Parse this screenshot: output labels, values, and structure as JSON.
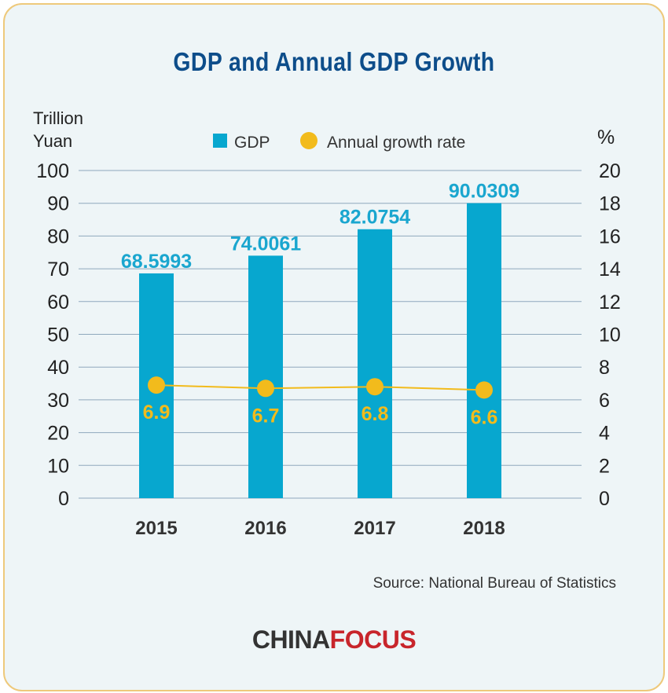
{
  "title": "GDP and Annual GDP Growth",
  "source": "Source: National Bureau of Statistics",
  "logo": {
    "part1": "CHINA",
    "part2": "FOCUS"
  },
  "colors": {
    "bar": "#07a7cf",
    "line": "#f2bb1c",
    "title": "#0d4d8a",
    "grid": "#8fa8bd"
  },
  "chart_data": {
    "type": "bar",
    "title": "GDP and Annual GDP Growth",
    "categories": [
      "2015",
      "2016",
      "2017",
      "2018"
    ],
    "y_left_label_line1": "Trillion",
    "y_left_label_line2": "Yuan",
    "y_right_label": "%",
    "ylim_left": [
      0,
      100
    ],
    "ylim_right": [
      0,
      20
    ],
    "yticks_left": [
      "0",
      "10",
      "20",
      "30",
      "40",
      "50",
      "60",
      "70",
      "80",
      "90",
      "100"
    ],
    "yticks_right": [
      "0",
      "2",
      "4",
      "6",
      "8",
      "10",
      "12",
      "14",
      "16",
      "18",
      "20"
    ],
    "grid": true,
    "legend_position": "top",
    "series": [
      {
        "name": "GDP",
        "type": "bar",
        "axis": "left",
        "values": [
          68.5993,
          74.0061,
          82.0754,
          90.0309
        ],
        "labels": [
          "68.5993",
          "74.0061",
          "82.0754",
          "90.0309"
        ]
      },
      {
        "name": "Annual growth rate",
        "type": "line",
        "axis": "right",
        "values": [
          6.9,
          6.7,
          6.8,
          6.6
        ],
        "labels": [
          "6.9",
          "6.7",
          "6.8",
          "6.6"
        ]
      }
    ]
  }
}
